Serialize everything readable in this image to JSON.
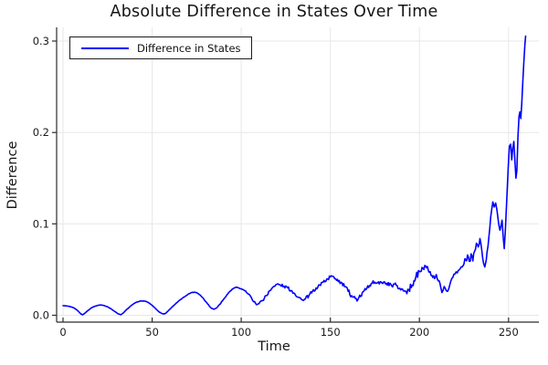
{
  "chart_data": {
    "type": "line",
    "title": "Absolute Difference in States Over Time",
    "xlabel": "Time",
    "ylabel": "Difference",
    "xlim": [
      -3.6,
      267
    ],
    "ylim": [
      -0.0075,
      0.315
    ],
    "x_ticks": [
      0,
      50,
      100,
      150,
      200,
      250
    ],
    "y_ticks": [
      0,
      0.1,
      0.2,
      0.3
    ],
    "y_tick_labels": [
      "0.0",
      "0.1",
      "0.2",
      "0.3"
    ],
    "grid": true,
    "legend_position": "top-left",
    "colors": {
      "grid": "#e7e7e7",
      "spine": "#2c2c2c",
      "tick_text": "#1a1a1a",
      "background": "#ffffff"
    },
    "series": [
      {
        "name": "Difference in States",
        "color": "#0000ff",
        "points": [
          [
            0,
            0.0105
          ],
          [
            2,
            0.0102
          ],
          [
            4,
            0.0095
          ],
          [
            6,
            0.0082
          ],
          [
            8,
            0.0055
          ],
          [
            10,
            0.0015
          ],
          [
            11,
            0.0005
          ],
          [
            12,
            0.0018
          ],
          [
            14,
            0.0052
          ],
          [
            16,
            0.0082
          ],
          [
            18,
            0.01
          ],
          [
            20,
            0.011
          ],
          [
            21,
            0.0113
          ],
          [
            23,
            0.0107
          ],
          [
            25,
            0.0092
          ],
          [
            27,
            0.007
          ],
          [
            29,
            0.0042
          ],
          [
            31,
            0.0015
          ],
          [
            32.5,
            0.0006
          ],
          [
            34,
            0.0028
          ],
          [
            36,
            0.0068
          ],
          [
            38,
            0.0102
          ],
          [
            40,
            0.013
          ],
          [
            42,
            0.0148
          ],
          [
            44,
            0.0157
          ],
          [
            46,
            0.0155
          ],
          [
            48,
            0.0138
          ],
          [
            50,
            0.011
          ],
          [
            52,
            0.0072
          ],
          [
            54,
            0.0035
          ],
          [
            56,
            0.0016
          ],
          [
            57,
            0.0015
          ],
          [
            58,
            0.0028
          ],
          [
            60,
            0.0068
          ],
          [
            62,
            0.0105
          ],
          [
            64,
            0.014
          ],
          [
            66,
            0.0172
          ],
          [
            68,
            0.02
          ],
          [
            70,
            0.0228
          ],
          [
            72,
            0.0248
          ],
          [
            73.5,
            0.0253
          ],
          [
            75,
            0.0248
          ],
          [
            77,
            0.0222
          ],
          [
            79,
            0.0178
          ],
          [
            81,
            0.0128
          ],
          [
            83,
            0.0082
          ],
          [
            84.7,
            0.0065
          ],
          [
            86,
            0.0078
          ],
          [
            88,
            0.012
          ],
          [
            90,
            0.0172
          ],
          [
            92,
            0.0225
          ],
          [
            94,
            0.0268
          ],
          [
            96,
            0.0298
          ],
          [
            97,
            0.0305
          ],
          [
            98,
            0.0303
          ],
          [
            100,
            0.029
          ],
          [
            102,
            0.0268
          ],
          [
            104,
            0.0232
          ],
          [
            106,
            0.018
          ],
          [
            108,
            0.0132
          ],
          [
            109,
            0.0118
          ],
          [
            110,
            0.0128
          ],
          [
            112,
            0.0162
          ],
          [
            114,
            0.0215
          ],
          [
            116,
            0.0268
          ],
          [
            118,
            0.0312
          ],
          [
            120,
            0.0338
          ],
          [
            122,
            0.033
          ],
          [
            124,
            0.0318
          ],
          [
            126,
            0.03
          ],
          [
            128,
            0.0272
          ],
          [
            130,
            0.0238
          ],
          [
            132,
            0.0198
          ],
          [
            134,
            0.017
          ],
          [
            135,
            0.0162
          ],
          [
            136,
            0.0178
          ],
          [
            138,
            0.0218
          ],
          [
            140,
            0.0262
          ],
          [
            142,
            0.0298
          ],
          [
            144,
            0.033
          ],
          [
            146,
            0.0362
          ],
          [
            148,
            0.0395
          ],
          [
            150,
            0.0418
          ],
          [
            151,
            0.0428
          ],
          [
            152,
            0.0418
          ],
          [
            154,
            0.0392
          ],
          [
            156,
            0.036
          ],
          [
            158,
            0.0312
          ],
          [
            160,
            0.0262
          ],
          [
            162,
            0.0215
          ],
          [
            164,
            0.0185
          ],
          [
            165.5,
            0.0172
          ],
          [
            167,
            0.0205
          ],
          [
            169,
            0.0268
          ],
          [
            171,
            0.0322
          ],
          [
            173,
            0.0348
          ],
          [
            175,
            0.0362
          ],
          [
            177,
            0.0365
          ],
          [
            179,
            0.0352
          ],
          [
            181,
            0.0342
          ],
          [
            183,
            0.0325
          ],
          [
            185,
            0.031
          ],
          [
            187,
            0.0328
          ],
          [
            189,
            0.0295
          ],
          [
            191,
            0.0268
          ],
          [
            192.5,
            0.0258
          ],
          [
            194,
            0.0282
          ],
          [
            196,
            0.033
          ],
          [
            198,
            0.042
          ],
          [
            200,
            0.048
          ],
          [
            202,
            0.0515
          ],
          [
            203,
            0.0545
          ],
          [
            204,
            0.052
          ],
          [
            206,
            0.0478
          ],
          [
            208,
            0.0432
          ],
          [
            210,
            0.04
          ],
          [
            212,
            0.0305
          ],
          [
            213.3,
            0.0272
          ],
          [
            214.5,
            0.0295
          ],
          [
            215.8,
            0.0262
          ],
          [
            217,
            0.033
          ],
          [
            218.2,
            0.0402
          ],
          [
            220,
            0.0452
          ],
          [
            221.8,
            0.049
          ],
          [
            223,
            0.0515
          ],
          [
            224.5,
            0.0542
          ],
          [
            226,
            0.0605
          ],
          [
            227,
            0.066
          ],
          [
            228,
            0.059
          ],
          [
            229,
            0.0672
          ],
          [
            230,
            0.0595
          ],
          [
            231,
            0.0702
          ],
          [
            232,
            0.0788
          ],
          [
            233,
            0.0748
          ],
          [
            234,
            0.084
          ],
          [
            235,
            0.0712
          ],
          [
            236,
            0.0572
          ],
          [
            236.7,
            0.0528
          ],
          [
            237.5,
            0.0605
          ],
          [
            238.5,
            0.0755
          ],
          [
            239.5,
            0.0955
          ],
          [
            240.5,
            0.1145
          ],
          [
            241.2,
            0.124
          ],
          [
            242,
            0.1185
          ],
          [
            242.8,
            0.1228
          ],
          [
            243.5,
            0.1152
          ],
          [
            244.3,
            0.1032
          ],
          [
            245.2,
            0.093
          ],
          [
            245.8,
            0.0982
          ],
          [
            246.4,
            0.104
          ],
          [
            247,
            0.0862
          ],
          [
            247.6,
            0.073
          ],
          [
            248.2,
            0.0905
          ],
          [
            249,
            0.1255
          ],
          [
            249.8,
            0.1605
          ],
          [
            250.5,
            0.185
          ],
          [
            251.2,
            0.1872
          ],
          [
            251.8,
            0.17
          ],
          [
            252.4,
            0.1825
          ],
          [
            253,
            0.1902
          ],
          [
            253.6,
            0.1682
          ],
          [
            254.2,
            0.15
          ],
          [
            254.7,
            0.1582
          ],
          [
            255.3,
            0.1952
          ],
          [
            255.9,
            0.218
          ],
          [
            256.4,
            0.2225
          ],
          [
            256.9,
            0.2152
          ],
          [
            257.4,
            0.2302
          ],
          [
            258,
            0.255
          ],
          [
            258.6,
            0.276
          ],
          [
            259.2,
            0.296
          ],
          [
            259.6,
            0.3055
          ]
        ],
        "noise_envelope": [
          [
            0,
            0
          ],
          [
            100,
            0.0004
          ],
          [
            105,
            0.0012
          ],
          [
            130,
            0.0018
          ],
          [
            150,
            0.0022
          ],
          [
            165,
            0.0026
          ],
          [
            185,
            0.003
          ],
          [
            200,
            0.0036
          ],
          [
            215,
            0.0042
          ],
          [
            235,
            0.004
          ],
          [
            240,
            0.0025
          ],
          [
            248,
            0.003
          ],
          [
            252,
            0.0035
          ],
          [
            256,
            0.002
          ],
          [
            260,
            0.0012
          ]
        ]
      }
    ]
  }
}
